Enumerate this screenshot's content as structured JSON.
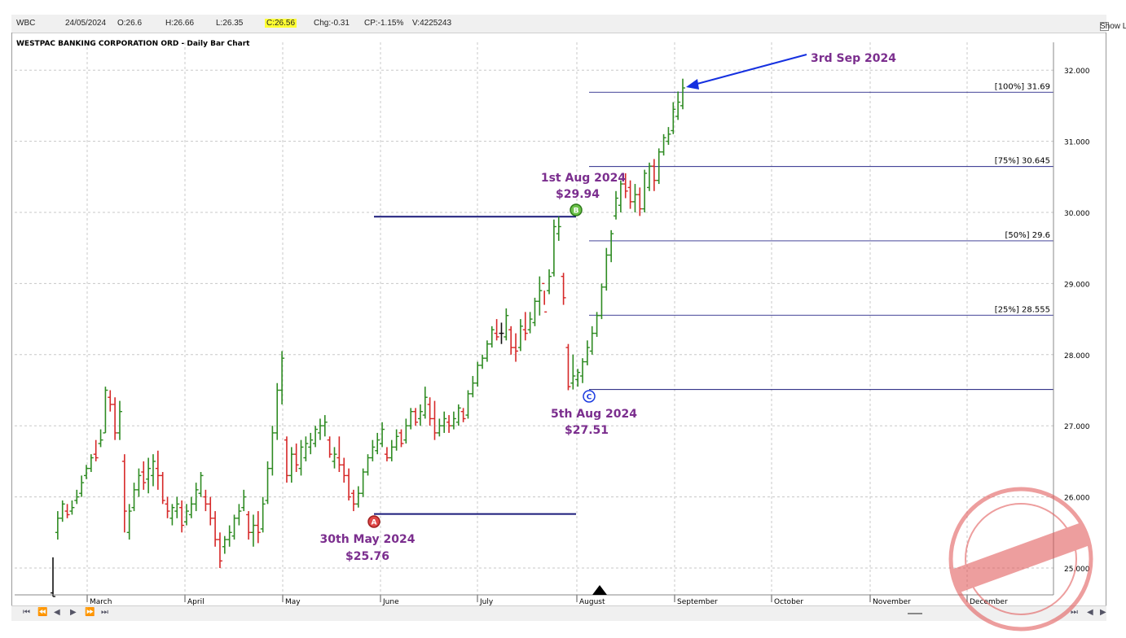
{
  "header": {
    "symbol": "WBC",
    "date": "24/05/2024",
    "open": "O:26.6",
    "high": "H:26.66",
    "low": "L:26.35",
    "close": "C:26.56",
    "change": "Chg:-0.31",
    "change_pct": "CP:-1.15%",
    "volume": "V:4225243",
    "show_last_label": "Show Last"
  },
  "colors": {
    "up": "#2e8b22",
    "down": "#d62828",
    "neutral": "#111111",
    "level": "#1a1a7a",
    "annotation": "#7b2e8e",
    "arrow": "#1530e0"
  },
  "chart_data": {
    "type": "bar",
    "title": "WESTPAC BANKING CORPORATION ORD - Daily Bar Chart",
    "x_labels": [
      "March",
      "April",
      "May",
      "June",
      "July",
      "August",
      "September",
      "October",
      "November",
      "December"
    ],
    "y_ticks": [
      "25.000",
      "26.000",
      "27.000",
      "28.000",
      "29.000",
      "30.000",
      "31.000",
      "32.000"
    ],
    "ylim": [
      24.65,
      32.6
    ],
    "grid": true,
    "swing_points": [
      {
        "label": "A",
        "date": "30th May 2024",
        "price": "$25.76",
        "value": 25.76
      },
      {
        "label": "B",
        "date": "1st Aug 2024",
        "price": "$29.94",
        "value": 29.94
      },
      {
        "label": "C",
        "date": "5th Aug 2024",
        "price": "$27.51",
        "value": 27.51
      }
    ],
    "target_annotation": "3rd Sep 2024",
    "fib_levels": [
      {
        "label": "[100%] 31.69",
        "value": 31.69
      },
      {
        "label": "[75%] 30.645",
        "value": 30.645
      },
      {
        "label": "[50%] 29.6",
        "value": 29.6
      },
      {
        "label": "[25%] 28.555",
        "value": 28.555
      }
    ],
    "bars": [
      [
        25.15,
        24.6,
        24.65,
        24.6
      ],
      [
        25.8,
        25.4,
        25.5,
        25.7
      ],
      [
        25.95,
        25.65,
        25.7,
        25.9
      ],
      [
        25.9,
        25.7,
        25.8,
        25.75
      ],
      [
        25.95,
        25.75,
        25.8,
        25.85
      ],
      [
        26.1,
        25.9,
        25.95,
        26.0
      ],
      [
        26.3,
        26.0,
        26.05,
        26.2
      ],
      [
        26.45,
        26.25,
        26.3,
        26.4
      ],
      [
        26.6,
        26.35,
        26.4,
        26.55
      ],
      [
        26.8,
        26.5,
        26.6,
        26.55
      ],
      [
        26.95,
        26.7,
        26.75,
        26.8
      ],
      [
        27.55,
        26.9,
        26.9,
        27.5
      ],
      [
        27.5,
        27.2,
        27.4,
        27.3
      ],
      [
        27.4,
        26.8,
        27.3,
        26.9
      ],
      [
        27.35,
        26.8,
        26.9,
        27.2
      ],
      [
        26.6,
        25.5,
        26.5,
        25.8
      ],
      [
        25.9,
        25.4,
        25.5,
        25.8
      ],
      [
        26.2,
        25.8,
        25.85,
        26.1
      ],
      [
        26.4,
        26.0,
        26.1,
        26.3
      ],
      [
        26.5,
        26.1,
        26.35,
        26.2
      ],
      [
        26.55,
        26.05,
        26.25,
        26.4
      ],
      [
        26.6,
        26.15,
        26.3,
        26.5
      ],
      [
        26.65,
        26.1,
        26.4,
        26.3
      ],
      [
        26.35,
        25.9,
        26.3,
        25.95
      ],
      [
        26.0,
        25.7,
        25.9,
        25.8
      ],
      [
        25.9,
        25.6,
        25.7,
        25.85
      ],
      [
        26.0,
        25.7,
        25.8,
        25.9
      ],
      [
        25.95,
        25.5,
        25.85,
        25.6
      ],
      [
        25.9,
        25.6,
        25.65,
        25.8
      ],
      [
        26.0,
        25.7,
        25.75,
        25.9
      ],
      [
        26.2,
        25.8,
        25.9,
        26.1
      ],
      [
        26.35,
        26.0,
        26.05,
        26.3
      ],
      [
        26.1,
        25.8,
        26.0,
        25.9
      ],
      [
        26.0,
        25.6,
        25.9,
        25.7
      ],
      [
        25.8,
        25.3,
        25.7,
        25.4
      ],
      [
        25.5,
        25.0,
        25.4,
        25.1
      ],
      [
        25.45,
        25.2,
        25.3,
        25.4
      ],
      [
        25.6,
        25.3,
        25.4,
        25.5
      ],
      [
        25.75,
        25.4,
        25.45,
        25.7
      ],
      [
        25.9,
        25.6,
        25.7,
        25.8
      ],
      [
        26.1,
        25.8,
        25.85,
        26.0
      ],
      [
        25.8,
        25.4,
        25.75,
        25.5
      ],
      [
        25.75,
        25.3,
        25.5,
        25.6
      ],
      [
        25.8,
        25.35,
        25.6,
        25.5
      ],
      [
        26.0,
        25.5,
        25.55,
        25.9
      ],
      [
        26.5,
        25.9,
        25.95,
        26.4
      ],
      [
        27.0,
        26.3,
        26.4,
        26.9
      ],
      [
        27.6,
        26.8,
        26.9,
        27.5
      ],
      [
        28.05,
        27.3,
        27.5,
        27.95
      ],
      [
        26.85,
        26.2,
        26.8,
        26.3
      ],
      [
        26.7,
        26.2,
        26.3,
        26.6
      ],
      [
        26.75,
        26.35,
        26.6,
        26.45
      ],
      [
        26.8,
        26.3,
        26.4,
        26.7
      ],
      [
        26.85,
        26.5,
        26.55,
        26.75
      ],
      [
        26.9,
        26.6,
        26.7,
        26.8
      ],
      [
        27.0,
        26.7,
        26.75,
        26.95
      ],
      [
        27.1,
        26.8,
        26.9,
        27.0
      ],
      [
        27.15,
        26.85,
        27.0,
        27.05
      ],
      [
        26.85,
        26.55,
        26.8,
        26.6
      ],
      [
        26.7,
        26.4,
        26.5,
        26.6
      ],
      [
        26.85,
        26.35,
        26.55,
        26.45
      ],
      [
        26.55,
        26.2,
        26.45,
        26.3
      ],
      [
        26.4,
        25.95,
        26.3,
        26.0
      ],
      [
        26.1,
        25.8,
        26.05,
        25.9
      ],
      [
        26.15,
        25.85,
        25.9,
        26.05
      ],
      [
        26.4,
        26.0,
        26.05,
        26.35
      ],
      [
        26.6,
        26.3,
        26.35,
        26.55
      ],
      [
        26.8,
        26.5,
        26.55,
        26.7
      ],
      [
        26.9,
        26.6,
        26.65,
        26.8
      ],
      [
        27.05,
        26.7,
        26.75,
        26.95
      ],
      [
        26.7,
        26.5,
        26.6,
        26.55
      ],
      [
        26.8,
        26.5,
        26.55,
        26.7
      ],
      [
        26.95,
        26.65,
        26.7,
        26.85
      ],
      [
        26.95,
        26.7,
        26.9,
        26.75
      ],
      [
        27.1,
        26.75,
        26.8,
        27.0
      ],
      [
        27.25,
        26.95,
        27.0,
        27.2
      ],
      [
        27.25,
        27.0,
        27.2,
        27.05
      ],
      [
        27.3,
        27.0,
        27.1,
        27.2
      ],
      [
        27.55,
        27.1,
        27.15,
        27.4
      ],
      [
        27.4,
        27.0,
        27.3,
        27.1
      ],
      [
        27.35,
        26.8,
        27.1,
        26.9
      ],
      [
        27.1,
        26.85,
        26.9,
        27.0
      ],
      [
        27.2,
        26.9,
        27.0,
        27.1
      ],
      [
        27.15,
        26.9,
        27.05,
        27.0
      ],
      [
        27.2,
        26.95,
        27.0,
        27.1
      ],
      [
        27.3,
        27.0,
        27.05,
        27.25
      ],
      [
        27.25,
        27.05,
        27.2,
        27.1
      ],
      [
        27.5,
        27.1,
        27.15,
        27.45
      ],
      [
        27.7,
        27.4,
        27.45,
        27.6
      ],
      [
        27.9,
        27.55,
        27.6,
        27.85
      ],
      [
        28.0,
        27.8,
        27.85,
        27.95
      ],
      [
        28.2,
        27.9,
        27.95,
        28.15
      ],
      [
        28.4,
        28.1,
        28.15,
        28.35
      ],
      [
        28.5,
        28.2,
        28.3,
        28.25
      ],
      [
        28.45,
        28.15,
        28.3,
        28.3
      ],
      [
        28.65,
        28.2,
        28.25,
        28.55
      ],
      [
        28.4,
        28.0,
        28.35,
        28.1
      ],
      [
        28.3,
        27.9,
        28.1,
        28.05
      ],
      [
        28.5,
        28.05,
        28.1,
        28.4
      ],
      [
        28.6,
        28.2,
        28.35,
        28.3
      ],
      [
        28.6,
        28.3,
        28.35,
        28.5
      ],
      [
        28.8,
        28.4,
        28.45,
        28.75
      ],
      [
        29.1,
        28.55,
        28.75,
        28.9
      ],
      [
        28.7,
        28.9,
        29.0,
        28.6
      ],
      [
        29.2,
        28.85,
        28.9,
        29.1
      ],
      [
        29.9,
        29.1,
        29.15,
        29.8
      ],
      [
        29.94,
        29.6,
        29.7,
        29.8
      ],
      [
        29.15,
        28.7,
        29.1,
        28.8
      ],
      [
        28.15,
        27.5,
        28.1,
        27.55
      ],
      [
        28.0,
        27.51,
        27.6,
        27.7
      ],
      [
        27.8,
        27.55,
        27.65,
        27.75
      ],
      [
        27.95,
        27.6,
        27.7,
        27.9
      ],
      [
        28.2,
        27.85,
        27.9,
        28.1
      ],
      [
        28.4,
        28.0,
        28.05,
        28.3
      ],
      [
        28.6,
        28.25,
        28.3,
        28.55
      ],
      [
        29.0,
        28.5,
        28.55,
        28.95
      ],
      [
        29.5,
        28.9,
        28.95,
        29.4
      ],
      [
        29.75,
        29.3,
        29.4,
        29.7
      ],
      [
        30.3,
        29.9,
        29.95,
        30.2
      ],
      [
        30.45,
        30.0,
        30.1,
        30.4
      ],
      [
        30.55,
        30.2,
        30.4,
        30.3
      ],
      [
        30.45,
        30.05,
        30.35,
        30.15
      ],
      [
        30.4,
        30.0,
        30.15,
        30.25
      ],
      [
        30.35,
        29.95,
        30.25,
        30.05
      ],
      [
        30.6,
        30.0,
        30.05,
        30.55
      ],
      [
        30.7,
        30.3,
        30.35,
        30.65
      ],
      [
        30.75,
        30.3,
        30.65,
        30.45
      ],
      [
        30.9,
        30.4,
        30.45,
        30.85
      ],
      [
        31.1,
        30.8,
        30.85,
        31.05
      ],
      [
        31.2,
        30.95,
        31.0,
        31.1
      ],
      [
        31.55,
        31.1,
        31.15,
        31.45
      ],
      [
        31.7,
        31.3,
        31.35,
        31.55
      ],
      [
        31.88,
        31.45,
        31.5,
        31.75
      ]
    ]
  }
}
